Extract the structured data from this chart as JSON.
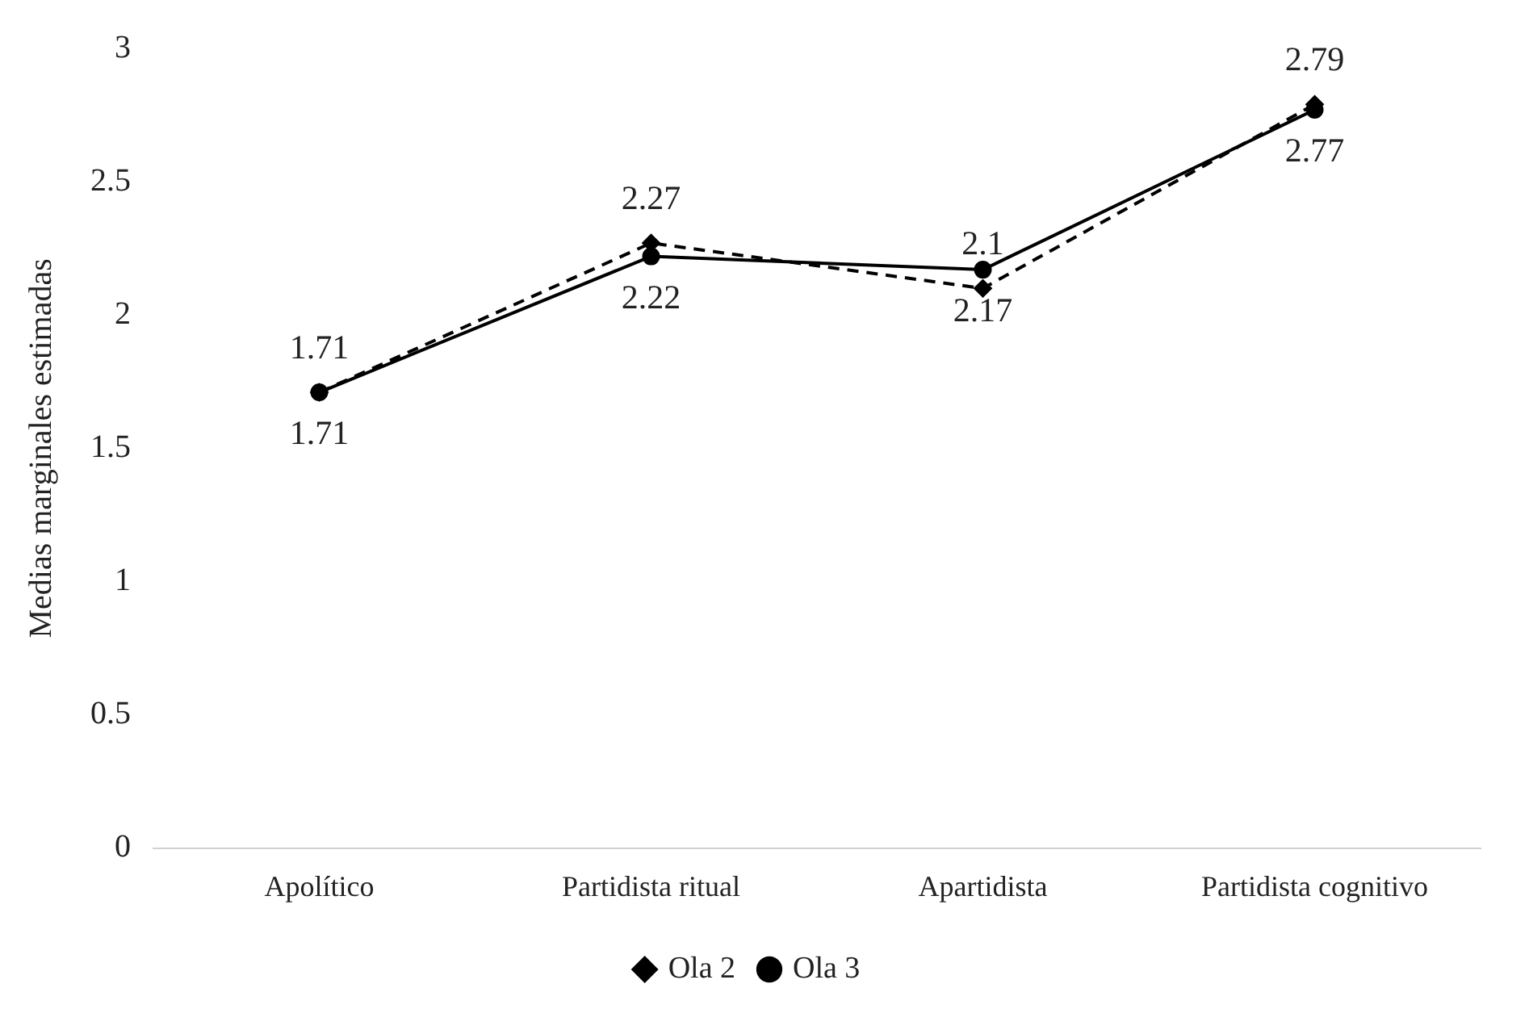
{
  "chart_data": {
    "type": "line",
    "ylabel": "Medias marginales estimadas",
    "categories": [
      "Apolítico",
      "Partidista ritual",
      "Apartidista",
      "Partidista cognitivo"
    ],
    "series": [
      {
        "name": "Ola 2",
        "color": "#000000",
        "values": [
          1.71,
          2.27,
          2.1,
          2.79
        ],
        "marker": "diamond",
        "line_style": "dashed"
      },
      {
        "name": "Ola 3",
        "color": "#000000",
        "values": [
          1.71,
          2.22,
          2.17,
          2.77
        ],
        "marker": "circle",
        "line_style": "solid"
      }
    ],
    "ylim": [
      0,
      3
    ],
    "yticks": [
      0,
      0.5,
      1,
      1.5,
      2,
      2.5,
      3
    ],
    "grid": false,
    "legend": "bottom",
    "data_labels": true
  }
}
